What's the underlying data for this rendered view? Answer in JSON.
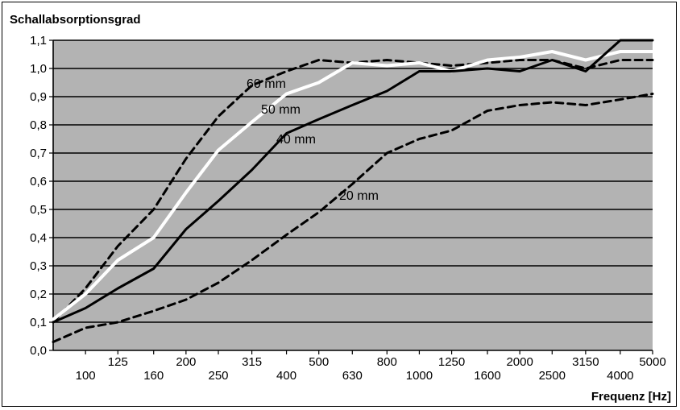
{
  "chart_data": {
    "type": "line",
    "title": "",
    "ylabel": "Schallabsorptionsgrad",
    "xlabel": "Frequenz [Hz]",
    "x_scale": "log",
    "xlim": [
      80,
      5000
    ],
    "ylim": [
      0.0,
      1.1
    ],
    "grid": true,
    "legend": "none",
    "x_ticks": [
      100,
      125,
      160,
      200,
      250,
      315,
      400,
      500,
      630,
      800,
      1000,
      1250,
      1600,
      2000,
      2500,
      3150,
      4000,
      5000
    ],
    "y_ticks": [
      "0,0",
      "0,1",
      "0,2",
      "0,3",
      "0,4",
      "0,5",
      "0,6",
      "0,7",
      "0,8",
      "0,9",
      "1,0",
      "1,1"
    ],
    "colors": {
      "plot_bg": "#b3b3b3",
      "grid": "#000000",
      "series_dark": "#000000",
      "series_light": "#ffffff"
    },
    "series": [
      {
        "name": "20 mm",
        "style": "dashed",
        "color": "#000000",
        "x": [
          80,
          100,
          125,
          160,
          200,
          250,
          315,
          400,
          500,
          630,
          800,
          1000,
          1250,
          1600,
          2000,
          2500,
          3150,
          4000,
          5000
        ],
        "y": [
          0.03,
          0.08,
          0.1,
          0.14,
          0.18,
          0.24,
          0.32,
          0.41,
          0.49,
          0.59,
          0.7,
          0.75,
          0.78,
          0.85,
          0.87,
          0.88,
          0.87,
          0.89,
          0.91
        ]
      },
      {
        "name": "40 mm",
        "style": "solid",
        "color": "#000000",
        "x": [
          80,
          100,
          125,
          160,
          200,
          250,
          315,
          400,
          500,
          630,
          800,
          1000,
          1250,
          1600,
          2000,
          2500,
          3150,
          4000,
          5000
        ],
        "y": [
          0.1,
          0.15,
          0.22,
          0.29,
          0.43,
          0.53,
          0.64,
          0.77,
          0.82,
          0.87,
          0.92,
          0.99,
          0.99,
          1.0,
          0.99,
          1.03,
          0.99,
          1.1,
          1.1
        ]
      },
      {
        "name": "50 mm",
        "style": "solid",
        "color": "#ffffff",
        "x": [
          80,
          100,
          125,
          160,
          200,
          250,
          315,
          400,
          500,
          630,
          800,
          1000,
          1250,
          1600,
          2000,
          2500,
          3150,
          4000,
          5000
        ],
        "y": [
          0.11,
          0.2,
          0.32,
          0.4,
          0.56,
          0.71,
          0.81,
          0.91,
          0.95,
          1.02,
          1.01,
          1.02,
          0.99,
          1.03,
          1.04,
          1.06,
          1.03,
          1.06,
          1.06
        ]
      },
      {
        "name": "60 mm",
        "style": "dashed",
        "color": "#000000",
        "x": [
          80,
          100,
          125,
          160,
          200,
          250,
          315,
          400,
          500,
          630,
          800,
          1000,
          1250,
          1600,
          2000,
          2500,
          3150,
          4000,
          5000
        ],
        "y": [
          0.1,
          0.22,
          0.37,
          0.5,
          0.68,
          0.83,
          0.94,
          0.99,
          1.03,
          1.02,
          1.03,
          1.02,
          1.01,
          1.02,
          1.03,
          1.03,
          1.0,
          1.03,
          1.03
        ]
      }
    ]
  }
}
